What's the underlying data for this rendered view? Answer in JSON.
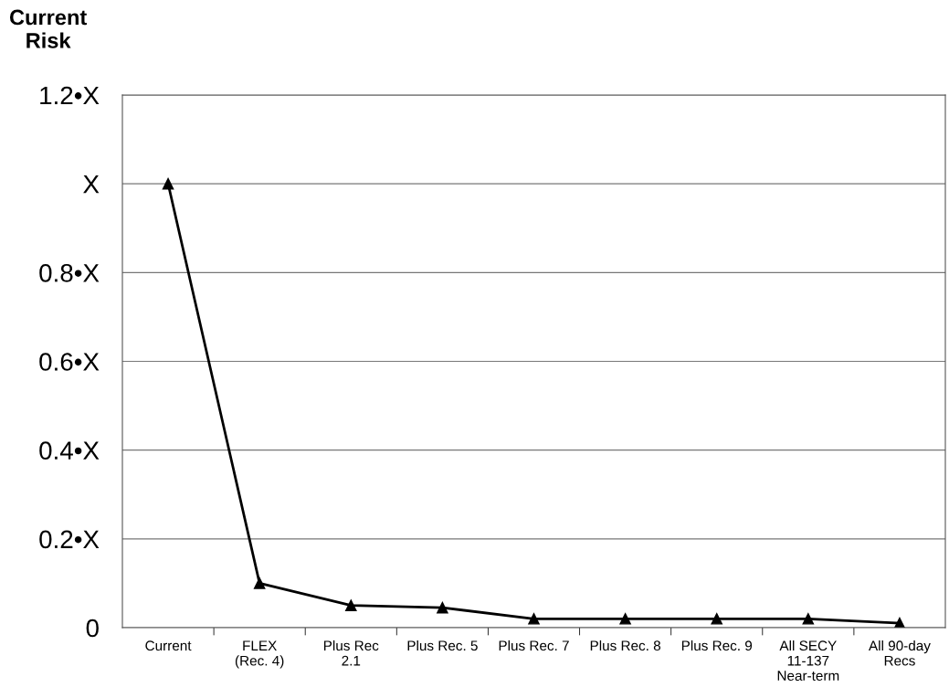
{
  "chart_data": {
    "type": "line",
    "ylabel": "Current\nRisk",
    "categories": [
      "Current",
      "FLEX\n(Rec. 4)",
      "Plus Rec\n2.1",
      "Plus Rec. 5",
      "Plus Rec. 7",
      "Plus Rec. 8",
      "Plus Rec. 9",
      "All SECY\n11-137\nNear-term",
      "All 90-day\nRecs"
    ],
    "series": [
      {
        "color": "#000000",
        "values": [
          1.0,
          0.1,
          0.05,
          0.045,
          0.02,
          0.02,
          0.02,
          0.02,
          0.01
        ]
      }
    ],
    "ylim": [
      0,
      1.2
    ],
    "yticks": [
      {
        "value": 0,
        "label": "0"
      },
      {
        "value": 0.2,
        "label": "0.2•X"
      },
      {
        "value": 0.4,
        "label": "0.4•X"
      },
      {
        "value": 0.6,
        "label": "0.6•X"
      },
      {
        "value": 0.8,
        "label": "0.8•X"
      },
      {
        "value": 1,
        "label": "X"
      },
      {
        "value": 1.2,
        "label": "1.2•X"
      }
    ],
    "grid": "y",
    "legend": false,
    "marker": "triangle",
    "line_style": "solid"
  }
}
